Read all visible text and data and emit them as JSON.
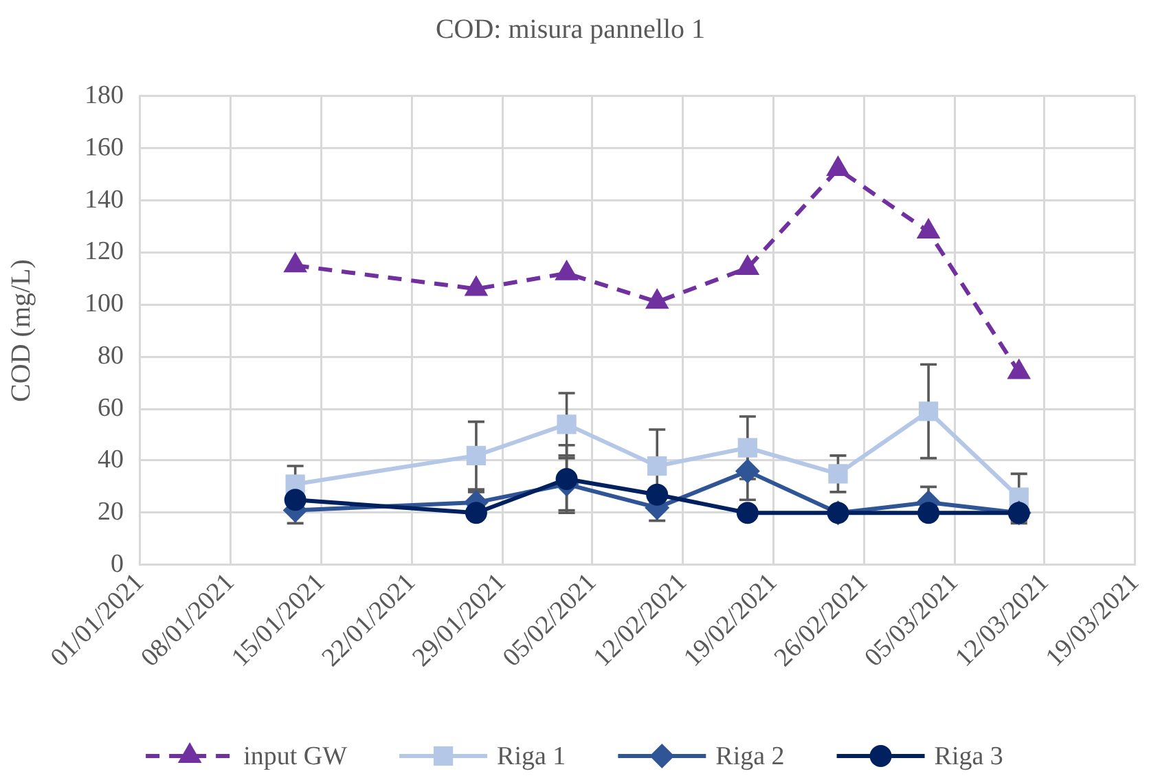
{
  "chart_data": {
    "type": "line",
    "title": "COD: misura pannello 1",
    "ylabel": "COD (mg/L)",
    "x": [
      "2021-01-13",
      "2021-01-27",
      "2021-02-03",
      "2021-02-10",
      "2021-02-17",
      "2021-02-24",
      "2021-03-03",
      "2021-03-10"
    ],
    "xlim": [
      "2021-01-01",
      "2021-03-19"
    ],
    "xticks": [
      {
        "value": "2021-01-01",
        "label": "01/01/2021"
      },
      {
        "value": "2021-01-08",
        "label": "08/01/2021"
      },
      {
        "value": "2021-01-15",
        "label": "15/01/2021"
      },
      {
        "value": "2021-01-22",
        "label": "22/01/2021"
      },
      {
        "value": "2021-01-29",
        "label": "29/01/2021"
      },
      {
        "value": "2021-02-05",
        "label": "05/02/2021"
      },
      {
        "value": "2021-02-12",
        "label": "12/02/2021"
      },
      {
        "value": "2021-02-19",
        "label": "19/02/2021"
      },
      {
        "value": "2021-02-26",
        "label": "26/02/2021"
      },
      {
        "value": "2021-03-05",
        "label": "05/03/2021"
      },
      {
        "value": "2021-03-12",
        "label": "12/03/2021"
      },
      {
        "value": "2021-03-19",
        "label": "19/03/2021"
      }
    ],
    "ylim": [
      0,
      180
    ],
    "yticks": [
      0,
      20,
      40,
      60,
      80,
      100,
      120,
      140,
      160,
      180
    ],
    "grid": true,
    "legend": "bottom",
    "series": [
      {
        "name": "input GW",
        "color": "#7030a0",
        "marker": "triangle",
        "line_style": "dashed",
        "values": [
          115,
          106,
          112,
          101,
          114,
          152,
          128,
          74
        ]
      },
      {
        "name": "Riga 1",
        "color": "#b4c7e7",
        "marker": "square",
        "line_style": "solid",
        "values": [
          31,
          42,
          54,
          38,
          45,
          35,
          59,
          26
        ],
        "errors": [
          7,
          13,
          12,
          14,
          12,
          7,
          18,
          9
        ]
      },
      {
        "name": "Riga 2",
        "color": "#2f5597",
        "marker": "diamond",
        "line_style": "solid",
        "values": [
          21,
          24,
          31,
          22,
          36,
          20,
          24,
          20
        ],
        "errors": [
          5,
          4,
          10,
          5,
          11,
          null,
          6,
          4
        ]
      },
      {
        "name": "Riga 3",
        "color": "#002060",
        "marker": "circle",
        "line_style": "solid",
        "values": [
          25,
          20,
          33,
          27,
          20,
          20,
          20,
          20
        ],
        "errors": [
          null,
          null,
          13,
          null,
          null,
          null,
          null,
          null
        ]
      }
    ]
  }
}
